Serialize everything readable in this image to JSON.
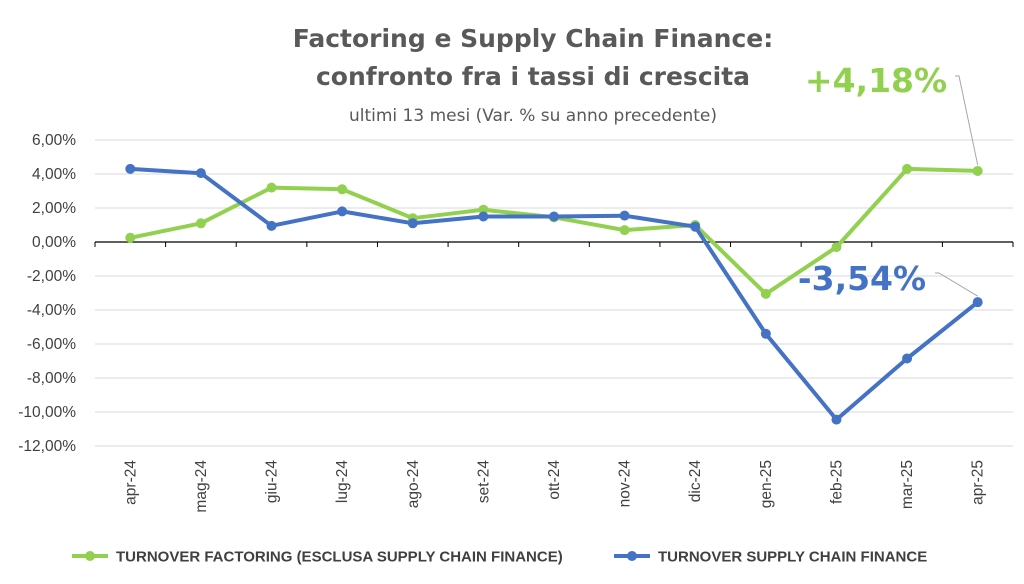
{
  "chart_data": {
    "type": "line",
    "title_line1": "Factoring e Supply Chain Finance:",
    "title_line2": "confronto fra i tassi di crescita",
    "subtitle": "ultimi 13 mesi (Var. % su anno precedente)",
    "categories": [
      "apr-24",
      "mag-24",
      "giu-24",
      "lug-24",
      "ago-24",
      "set-24",
      "ott-24",
      "nov-24",
      "dic-24",
      "gen-25",
      "feb-25",
      "mar-25",
      "apr-25"
    ],
    "yticks": [
      "6,00%",
      "4,00%",
      "2,00%",
      "0,00%",
      "-2,00%",
      "-4,00%",
      "-6,00%",
      "-8,00%",
      "-10,00%",
      "-12,00%"
    ],
    "ylim": [
      -12,
      6
    ],
    "grid": true,
    "legend_position": "bottom",
    "series": [
      {
        "name": "TURNOVER FACTORING (ESCLUSA SUPPLY CHAIN FINANCE)",
        "color": "#92D050",
        "values": [
          0.25,
          1.1,
          3.2,
          3.1,
          1.4,
          1.9,
          1.45,
          0.7,
          1.0,
          -3.05,
          -0.3,
          4.3,
          4.18
        ]
      },
      {
        "name": "TURNOVER SUPPLY CHAIN FINANCE",
        "color": "#4472C4",
        "values": [
          4.3,
          4.05,
          0.95,
          1.8,
          1.1,
          1.5,
          1.5,
          1.55,
          0.9,
          -5.4,
          -10.45,
          -6.85,
          -3.54
        ]
      }
    ],
    "annotations": [
      {
        "text": "+4,18%",
        "series": 0,
        "index": 12,
        "color": "#92D050"
      },
      {
        "text": "-3,54%",
        "series": 1,
        "index": 12,
        "color": "#4472C4"
      }
    ]
  }
}
